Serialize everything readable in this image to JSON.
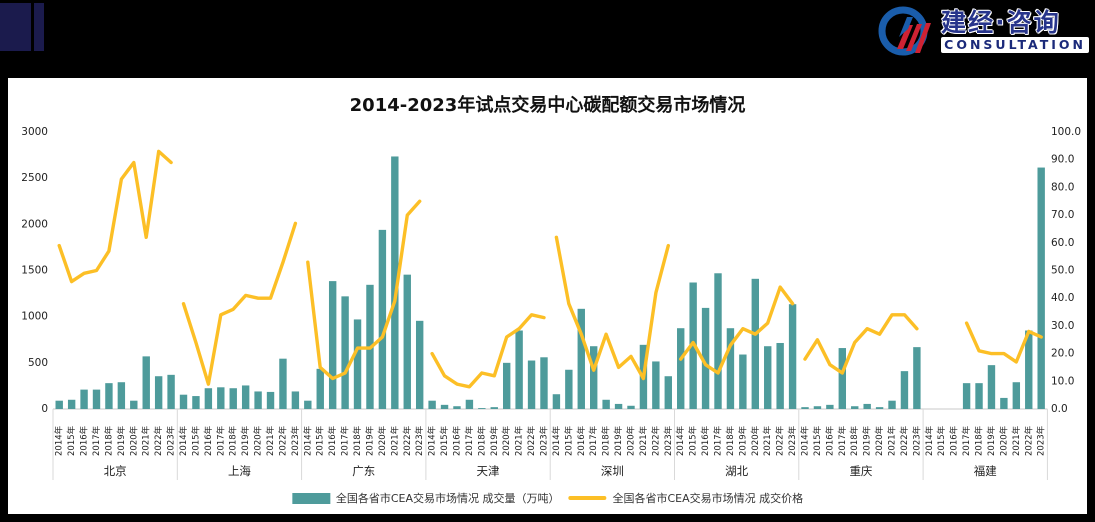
{
  "banner": {
    "logo_title": "建经·咨询",
    "logo_subtitle": "CONSULTATION"
  },
  "chart_data": {
    "type": "bar+line",
    "title": "2014-2023年试点交易中心碳配额交易市场情况",
    "years": [
      "2014年",
      "2015年",
      "2016年",
      "2017年",
      "2018年",
      "2019年",
      "2020年",
      "2021年",
      "2022年",
      "2023年"
    ],
    "left_axis": {
      "min": 0,
      "max": 3000,
      "step": 500,
      "ticks": [
        "0",
        "500",
        "1000",
        "1500",
        "2000",
        "2500",
        "3000"
      ]
    },
    "right_axis": {
      "min": 0,
      "max": 100,
      "step": 10,
      "ticks": [
        "0.0",
        "10.0",
        "20.0",
        "30.0",
        "40.0",
        "50.0",
        "60.0",
        "70.0",
        "80.0",
        "90.0",
        "100.0"
      ]
    },
    "groups": [
      {
        "name": "北京",
        "volume": [
          90,
          100,
          210,
          210,
          280,
          290,
          90,
          570,
          355,
          370
        ],
        "price": [
          59,
          46,
          49,
          50,
          57,
          83,
          89,
          62,
          93,
          89
        ]
      },
      {
        "name": "上海",
        "volume": [
          155,
          140,
          225,
          235,
          225,
          255,
          190,
          185,
          545,
          190
        ],
        "price": [
          38,
          24,
          9,
          34,
          36,
          41,
          40,
          40,
          53,
          67
        ]
      },
      {
        "name": "广东",
        "volume": [
          90,
          435,
          1385,
          1220,
          970,
          1345,
          1940,
          2735,
          1455,
          955
        ],
        "price": [
          53,
          15,
          11,
          13,
          22,
          22,
          26,
          39,
          70,
          75
        ]
      },
      {
        "name": "天津",
        "volume": [
          90,
          45,
          30,
          100,
          10,
          20,
          500,
          850,
          525,
          560
        ],
        "price": [
          20,
          12,
          9,
          8,
          13,
          12,
          26,
          29,
          34,
          33
        ]
      },
      {
        "name": "深圳",
        "volume": [
          160,
          425,
          1085,
          680,
          100,
          55,
          35,
          695,
          515,
          355
        ],
        "price": [
          62,
          38,
          27,
          14,
          27,
          15,
          19,
          11,
          42,
          59
        ]
      },
      {
        "name": "湖北",
        "volume": [
          875,
          1370,
          1095,
          1470,
          875,
          590,
          1410,
          680,
          715,
          1135
        ],
        "price": [
          18,
          24,
          16,
          13,
          23,
          29,
          27,
          31,
          44,
          38
        ]
      },
      {
        "name": "重庆",
        "volume": [
          20,
          30,
          45,
          660,
          30,
          55,
          20,
          90,
          410,
          670
        ],
        "price": [
          18,
          25,
          16,
          13,
          24,
          29,
          27,
          34,
          34,
          29
        ]
      },
      {
        "name": "福建",
        "volume": [
          null,
          null,
          null,
          280,
          280,
          475,
          120,
          290,
          850,
          2615
        ],
        "price": [
          null,
          null,
          null,
          31,
          21,
          20,
          20,
          17,
          28,
          26
        ]
      }
    ],
    "legend": [
      {
        "label": "全国各省市CEA交易市场情况 成交量（万吨）",
        "type": "bar"
      },
      {
        "label": "全国各省市CEA交易市场情况 成交价格",
        "type": "line"
      }
    ],
    "colors": {
      "bar": "#4e9b9b",
      "line": "#fcbf26",
      "axis_text": "#222222",
      "separator": "#d9d9d9"
    }
  }
}
